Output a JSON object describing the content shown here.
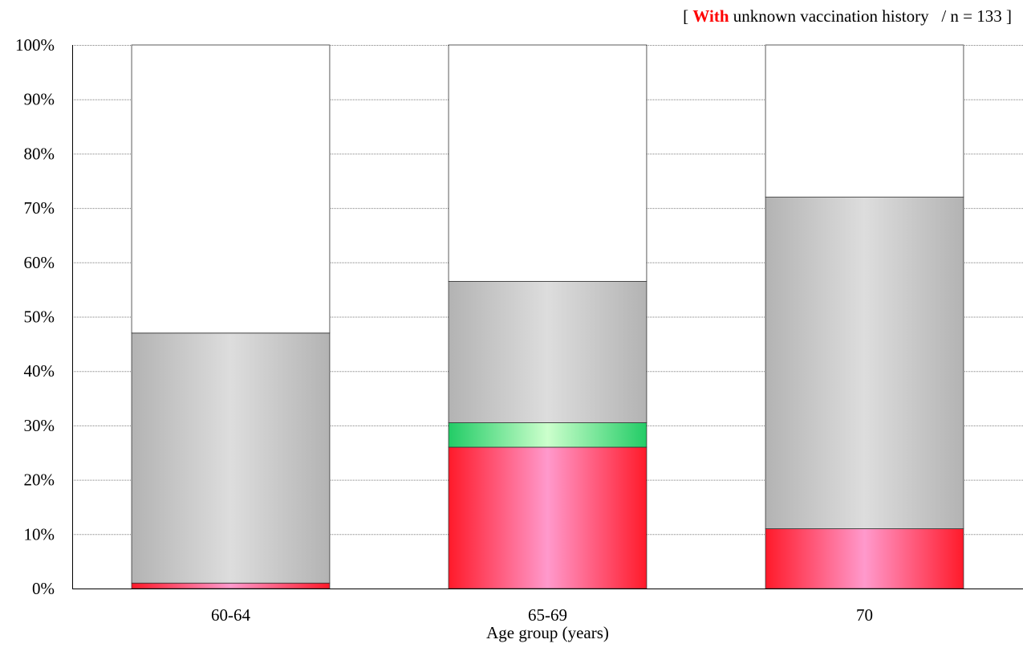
{
  "subtitle": {
    "open": "[ ",
    "highlight": "With",
    "rest": " unknown vaccination history   / n = 133 ]",
    "highlight_color": "#ff0000"
  },
  "chart_data": {
    "type": "bar",
    "stacked": true,
    "percent_axis": true,
    "categories": [
      "60-64",
      "65-69",
      "70"
    ],
    "series": [
      {
        "key": "red",
        "color": "#ff1a2a",
        "light": "#ff99cc",
        "values": [
          1,
          26,
          11
        ]
      },
      {
        "key": "green",
        "color": "#22cc66",
        "light": "#ccffcc",
        "values": [
          0,
          4.5,
          0
        ]
      },
      {
        "key": "gray",
        "color": "#b3b3b3",
        "light": "#dddddd",
        "values": [
          46,
          26,
          61
        ]
      },
      {
        "key": "white",
        "color": "#ffffff",
        "light": "#ffffff",
        "values": [
          53,
          43.5,
          28
        ]
      }
    ],
    "ylim": [
      0,
      100
    ],
    "yticks": [
      "0%",
      "10%",
      "20%",
      "30%",
      "40%",
      "50%",
      "60%",
      "70%",
      "80%",
      "90%",
      "100%"
    ],
    "xlabel": "Age group (years)",
    "ylabel": "",
    "grid": true
  }
}
